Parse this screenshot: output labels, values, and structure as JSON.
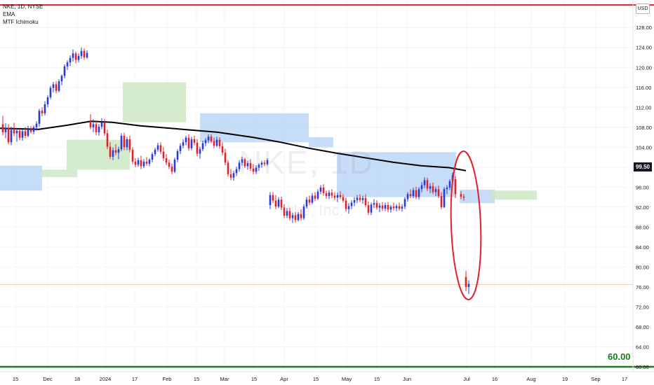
{
  "legend": {
    "symbol": "NKE, 1D, NYSE",
    "indicator_1": "EMA",
    "indicator_2": "MTF Ichimoku"
  },
  "currency_label": "USD",
  "current_price_tag": "99.50",
  "support_level_label": "60.00",
  "watermark": {
    "ticker": "NKE, 1D",
    "company": "Nike, Inc."
  },
  "colors": {
    "up_candle": "#2a3ad6",
    "down_candle": "#e0202b",
    "ema_line": "#000000",
    "cloud_bearish": "#bcd7f6",
    "cloud_bullish": "#cde8c5",
    "top_line": "#e0202b",
    "support_line": "#1b7a1b",
    "annotation_ellipse": "#e0202b"
  },
  "chart_data": {
    "type": "candlestick",
    "ylim": [
      60,
      133
    ],
    "y_ticks": [
      "128.00",
      "124.00",
      "120.00",
      "116.00",
      "112.00",
      "108.00",
      "104.00",
      "100.00",
      "96.00",
      "92.00",
      "88.00",
      "84.00",
      "80.00",
      "76.00",
      "72.00",
      "68.00",
      "64.00",
      "60.00"
    ],
    "x_ticks": [
      "15",
      "Dec",
      "18",
      "2024",
      "17",
      "Feb",
      "15",
      "Mar",
      "15",
      "Apr",
      "15",
      "May",
      "15",
      "Jun",
      "Jul",
      "16",
      "Aug",
      "19",
      "Sep",
      "17"
    ],
    "horizontal_lines": [
      {
        "price": 132.5,
        "color": "red"
      },
      {
        "price": 60.0,
        "color": "green"
      },
      {
        "price": 76.5,
        "color": "light-orange"
      }
    ],
    "ema": [
      [
        0,
        107.8
      ],
      [
        55,
        107.6
      ],
      [
        95,
        108.4
      ],
      [
        130,
        109.2
      ],
      [
        160,
        109.0
      ],
      [
        200,
        108.3
      ],
      [
        260,
        107.6
      ],
      [
        310,
        107.0
      ],
      [
        360,
        106.0
      ],
      [
        400,
        105.0
      ],
      [
        440,
        103.8
      ],
      [
        480,
        102.8
      ],
      [
        520,
        101.9
      ],
      [
        560,
        101.0
      ],
      [
        600,
        100.3
      ],
      [
        640,
        99.9
      ],
      [
        664,
        99.3
      ]
    ],
    "cloud_bearish": [
      {
        "x_start": 0,
        "x_end": 60,
        "top": 100.3,
        "bottom": 95.3
      },
      {
        "x_start": 285,
        "x_end": 440,
        "top": 110.8,
        "bottom": 105.0
      },
      {
        "x_start": 440,
        "x_end": 475,
        "top": 106.0,
        "bottom": 104.0
      },
      {
        "x_start": 480,
        "x_end": 650,
        "top": 103.0,
        "bottom": 94.0
      },
      {
        "x_start": 655,
        "x_end": 705,
        "top": 95.5,
        "bottom": 92.8
      }
    ],
    "cloud_bullish": [
      {
        "x_start": 60,
        "x_end": 110,
        "top": 99.5,
        "bottom": 98.0
      },
      {
        "x_start": 95,
        "x_end": 185,
        "top": 105.5,
        "bottom": 99.5
      },
      {
        "x_start": 175,
        "x_end": 265,
        "top": 117.0,
        "bottom": 109.0
      },
      {
        "x_start": 700,
        "x_end": 765,
        "top": 95.3,
        "bottom": 93.5
      }
    ],
    "candles": [
      [
        4,
        108.6,
        110.3,
        106.4,
        107.0
      ],
      [
        8,
        107.0,
        108.8,
        105.8,
        107.9
      ],
      [
        12,
        107.9,
        108.6,
        104.6,
        105.0
      ],
      [
        16,
        105.0,
        108.1,
        104.4,
        107.5
      ],
      [
        20,
        107.5,
        108.9,
        106.2,
        106.8
      ],
      [
        24,
        106.8,
        107.8,
        105.1,
        107.3
      ],
      [
        28,
        107.3,
        107.9,
        105.4,
        105.9
      ],
      [
        32,
        105.9,
        107.6,
        105.3,
        107.2
      ],
      [
        36,
        107.2,
        108.0,
        105.8,
        106.3
      ],
      [
        40,
        106.3,
        108.3,
        106.0,
        107.6
      ],
      [
        44,
        107.6,
        108.2,
        106.8,
        107.1
      ],
      [
        48,
        107.1,
        108.4,
        106.6,
        108.0
      ],
      [
        52,
        108.0,
        109.2,
        107.3,
        108.7
      ],
      [
        56,
        108.7,
        111.7,
        108.1,
        111.3
      ],
      [
        60,
        111.3,
        112.0,
        110.2,
        110.8
      ],
      [
        64,
        110.8,
        113.2,
        110.4,
        112.6
      ],
      [
        68,
        112.6,
        114.4,
        112.0,
        114.0
      ],
      [
        72,
        114.0,
        116.3,
        113.6,
        115.9
      ],
      [
        76,
        115.9,
        117.1,
        115.0,
        116.6
      ],
      [
        80,
        116.6,
        117.2,
        114.8,
        115.3
      ],
      [
        84,
        115.3,
        117.6,
        115.0,
        117.2
      ],
      [
        88,
        117.2,
        118.6,
        116.4,
        118.3
      ],
      [
        92,
        118.3,
        120.6,
        117.8,
        120.2
      ],
      [
        96,
        120.2,
        121.4,
        119.5,
        121.0
      ],
      [
        100,
        121.0,
        122.4,
        120.3,
        121.9
      ],
      [
        104,
        121.9,
        123.6,
        121.2,
        122.8
      ],
      [
        108,
        122.8,
        123.2,
        120.8,
        121.5
      ],
      [
        112,
        121.5,
        122.8,
        121.0,
        122.3
      ],
      [
        116,
        122.3,
        124.0,
        121.7,
        123.3
      ],
      [
        120,
        123.3,
        123.8,
        121.5,
        122.0
      ],
      [
        124,
        122.0,
        123.4,
        121.7,
        122.9
      ],
      [
        129,
        109.2,
        110.6,
        107.6,
        108.0
      ],
      [
        133,
        108.0,
        109.6,
        107.0,
        108.6
      ],
      [
        137,
        108.6,
        109.4,
        106.4,
        107.0
      ],
      [
        141,
        107.0,
        108.6,
        106.3,
        108.1
      ],
      [
        145,
        108.1,
        109.8,
        107.6,
        109.0
      ],
      [
        149,
        109.0,
        109.6,
        106.3,
        106.8
      ],
      [
        153,
        106.8,
        107.5,
        103.6,
        104.1
      ],
      [
        157,
        104.1,
        105.0,
        101.6,
        102.1
      ],
      [
        161,
        102.1,
        104.0,
        101.4,
        103.4
      ],
      [
        165,
        103.4,
        104.6,
        102.4,
        102.9
      ],
      [
        169,
        102.9,
        104.1,
        101.6,
        103.6
      ],
      [
        173,
        103.6,
        106.8,
        103.2,
        106.3
      ],
      [
        177,
        106.3,
        106.9,
        103.4,
        104.0
      ],
      [
        181,
        104.0,
        106.1,
        103.4,
        105.6
      ],
      [
        185,
        105.6,
        106.3,
        103.0,
        103.5
      ],
      [
        189,
        103.5,
        104.0,
        100.6,
        101.1
      ],
      [
        193,
        101.1,
        101.8,
        100.0,
        100.5
      ],
      [
        197,
        100.5,
        101.9,
        100.1,
        101.4
      ],
      [
        201,
        101.4,
        102.3,
        99.6,
        100.2
      ],
      [
        205,
        100.2,
        101.6,
        99.8,
        101.1
      ],
      [
        209,
        101.1,
        102.0,
        100.3,
        100.7
      ],
      [
        213,
        100.7,
        101.8,
        100.2,
        101.5
      ],
      [
        217,
        101.5,
        103.0,
        101.0,
        102.6
      ],
      [
        221,
        102.6,
        103.9,
        102.2,
        103.5
      ],
      [
        225,
        103.5,
        104.9,
        103.1,
        104.4
      ],
      [
        229,
        104.4,
        105.0,
        102.6,
        103.1
      ],
      [
        233,
        103.1,
        104.0,
        101.3,
        101.8
      ],
      [
        237,
        101.8,
        102.6,
        100.4,
        100.9
      ],
      [
        241,
        100.9,
        101.5,
        99.6,
        100.1
      ],
      [
        245,
        100.1,
        100.7,
        98.6,
        99.1
      ],
      [
        249,
        99.1,
        101.9,
        98.8,
        101.5
      ],
      [
        253,
        101.5,
        103.6,
        101.0,
        103.2
      ],
      [
        257,
        103.2,
        104.8,
        102.6,
        104.3
      ],
      [
        261,
        104.3,
        105.6,
        103.8,
        105.0
      ],
      [
        265,
        105.0,
        106.3,
        104.4,
        105.9
      ],
      [
        269,
        105.9,
        106.6,
        103.3,
        103.8
      ],
      [
        273,
        103.8,
        106.1,
        103.4,
        105.6
      ],
      [
        277,
        105.6,
        106.3,
        104.4,
        104.9
      ],
      [
        281,
        104.9,
        105.6,
        102.2,
        102.7
      ],
      [
        285,
        102.7,
        104.1,
        101.7,
        103.6
      ],
      [
        289,
        103.6,
        105.3,
        103.2,
        104.8
      ],
      [
        293,
        104.8,
        105.8,
        104.2,
        105.4
      ],
      [
        297,
        105.4,
        106.6,
        104.8,
        106.1
      ],
      [
        301,
        106.1,
        106.6,
        104.8,
        105.2
      ],
      [
        305,
        105.2,
        105.9,
        103.8,
        104.3
      ],
      [
        309,
        104.3,
        106.1,
        104.0,
        105.5
      ],
      [
        313,
        105.5,
        106.0,
        103.7,
        104.2
      ],
      [
        317,
        104.2,
        105.0,
        102.4,
        102.9
      ],
      [
        321,
        102.9,
        103.7,
        100.4,
        100.9
      ],
      [
        325,
        100.9,
        101.4,
        98.1,
        98.6
      ],
      [
        329,
        98.6,
        99.6,
        97.4,
        97.9
      ],
      [
        333,
        97.9,
        99.3,
        97.3,
        98.8
      ],
      [
        337,
        98.8,
        100.1,
        98.2,
        99.6
      ],
      [
        341,
        99.6,
        101.4,
        99.1,
        100.9
      ],
      [
        345,
        100.9,
        102.1,
        100.3,
        101.6
      ],
      [
        349,
        101.6,
        101.9,
        99.8,
        100.2
      ],
      [
        353,
        100.2,
        101.3,
        99.5,
        100.8
      ],
      [
        357,
        100.8,
        101.6,
        99.2,
        99.7
      ],
      [
        361,
        99.7,
        100.6,
        98.6,
        99.1
      ],
      [
        365,
        99.1,
        100.4,
        98.6,
        99.9
      ],
      [
        369,
        99.9,
        100.8,
        99.3,
        100.5
      ],
      [
        373,
        100.5,
        101.3,
        99.9,
        100.9
      ],
      [
        377,
        100.9,
        101.4,
        100.2,
        100.6
      ],
      [
        381,
        100.6,
        101.8,
        100.3,
        101.4
      ],
      [
        385,
        92.4,
        95.0,
        91.6,
        94.4
      ],
      [
        389,
        94.4,
        95.0,
        92.8,
        93.3
      ],
      [
        393,
        93.3,
        94.4,
        91.6,
        92.1
      ],
      [
        397,
        92.1,
        94.0,
        91.8,
        93.5
      ],
      [
        401,
        93.5,
        94.1,
        91.4,
        91.9
      ],
      [
        405,
        91.9,
        92.6,
        89.8,
        90.3
      ],
      [
        409,
        90.3,
        91.8,
        89.8,
        91.2
      ],
      [
        413,
        91.2,
        91.9,
        89.3,
        89.8
      ],
      [
        417,
        89.8,
        90.9,
        88.8,
        90.4
      ],
      [
        421,
        90.4,
        91.0,
        88.9,
        89.4
      ],
      [
        425,
        89.4,
        91.0,
        89.1,
        90.6
      ],
      [
        429,
        90.6,
        91.6,
        89.3,
        89.8
      ],
      [
        433,
        89.8,
        92.6,
        89.4,
        92.1
      ],
      [
        437,
        92.1,
        94.0,
        91.7,
        93.5
      ],
      [
        441,
        93.5,
        94.3,
        92.4,
        92.9
      ],
      [
        445,
        92.9,
        94.8,
        92.6,
        94.3
      ],
      [
        449,
        94.3,
        95.0,
        93.2,
        93.7
      ],
      [
        453,
        93.7,
        95.6,
        93.4,
        95.1
      ],
      [
        457,
        95.1,
        96.4,
        94.6,
        95.9
      ],
      [
        461,
        95.9,
        96.6,
        94.3,
        94.8
      ],
      [
        465,
        94.8,
        95.3,
        93.7,
        94.2
      ],
      [
        469,
        94.2,
        95.4,
        93.6,
        94.9
      ],
      [
        473,
        94.9,
        95.6,
        93.8,
        94.3
      ],
      [
        477,
        94.3,
        95.0,
        93.4,
        93.9
      ],
      [
        481,
        93.9,
        94.9,
        93.0,
        94.4
      ],
      [
        485,
        94.4,
        95.2,
        93.6,
        94.0
      ],
      [
        489,
        94.0,
        94.6,
        92.9,
        93.3
      ],
      [
        493,
        93.3,
        93.9,
        91.1,
        91.6
      ],
      [
        497,
        91.6,
        92.8,
        90.7,
        92.2
      ],
      [
        501,
        92.2,
        93.4,
        91.6,
        92.9
      ],
      [
        505,
        92.9,
        94.0,
        92.2,
        93.4
      ],
      [
        509,
        93.4,
        94.4,
        92.8,
        93.9
      ],
      [
        513,
        93.9,
        94.6,
        93.0,
        93.4
      ],
      [
        517,
        93.4,
        94.3,
        92.7,
        93.8
      ],
      [
        521,
        93.8,
        94.6,
        92.0,
        92.4
      ],
      [
        525,
        92.4,
        93.1,
        90.4,
        90.9
      ],
      [
        529,
        90.9,
        92.9,
        90.4,
        92.5
      ],
      [
        533,
        92.5,
        93.6,
        91.8,
        92.8
      ],
      [
        537,
        92.8,
        93.4,
        91.5,
        91.9
      ],
      [
        541,
        91.9,
        92.8,
        91.0,
        92.3
      ],
      [
        545,
        92.3,
        93.0,
        91.2,
        91.7
      ],
      [
        549,
        91.7,
        92.9,
        91.2,
        92.4
      ],
      [
        553,
        92.4,
        93.0,
        91.0,
        91.5
      ],
      [
        557,
        91.5,
        92.4,
        90.9,
        92.1
      ],
      [
        561,
        92.1,
        92.9,
        91.3,
        91.8
      ],
      [
        565,
        91.8,
        92.6,
        91.2,
        92.2
      ],
      [
        569,
        92.2,
        92.9,
        91.3,
        91.7
      ],
      [
        573,
        91.7,
        92.6,
        91.1,
        92.1
      ],
      [
        577,
        92.1,
        94.0,
        91.6,
        93.6
      ],
      [
        581,
        93.6,
        95.0,
        93.1,
        94.6
      ],
      [
        585,
        94.6,
        95.6,
        93.8,
        94.2
      ],
      [
        589,
        94.2,
        95.9,
        93.8,
        95.4
      ],
      [
        593,
        95.4,
        96.1,
        93.6,
        94.0
      ],
      [
        597,
        94.0,
        96.0,
        93.5,
        95.6
      ],
      [
        601,
        95.6,
        97.0,
        95.0,
        96.4
      ],
      [
        605,
        96.4,
        98.0,
        95.8,
        97.4
      ],
      [
        609,
        97.4,
        97.9,
        95.2,
        95.7
      ],
      [
        613,
        95.7,
        96.8,
        94.8,
        96.2
      ],
      [
        617,
        96.2,
        96.9,
        94.6,
        95.0
      ],
      [
        621,
        95.0,
        96.1,
        94.2,
        95.6
      ],
      [
        625,
        95.6,
        96.3,
        93.8,
        94.2
      ],
      [
        629,
        94.2,
        95.0,
        91.6,
        92.0
      ],
      [
        633,
        92.0,
        96.0,
        91.8,
        95.6
      ],
      [
        637,
        95.6,
        96.4,
        94.6,
        95.9
      ],
      [
        641,
        95.9,
        97.6,
        95.4,
        97.2
      ],
      [
        645,
        97.2,
        98.9,
        96.8,
        98.4
      ],
      [
        649,
        97.6,
        98.2,
        93.8,
        94.6
      ],
      [
        657,
        94.6,
        95.2,
        93.6,
        94.1
      ],
      [
        661,
        94.1,
        94.6,
        93.3,
        93.9
      ],
      [
        664,
        78.0,
        79.2,
        75.2,
        76.0
      ],
      [
        668,
        76.0,
        77.3,
        74.6,
        76.6
      ]
    ]
  }
}
